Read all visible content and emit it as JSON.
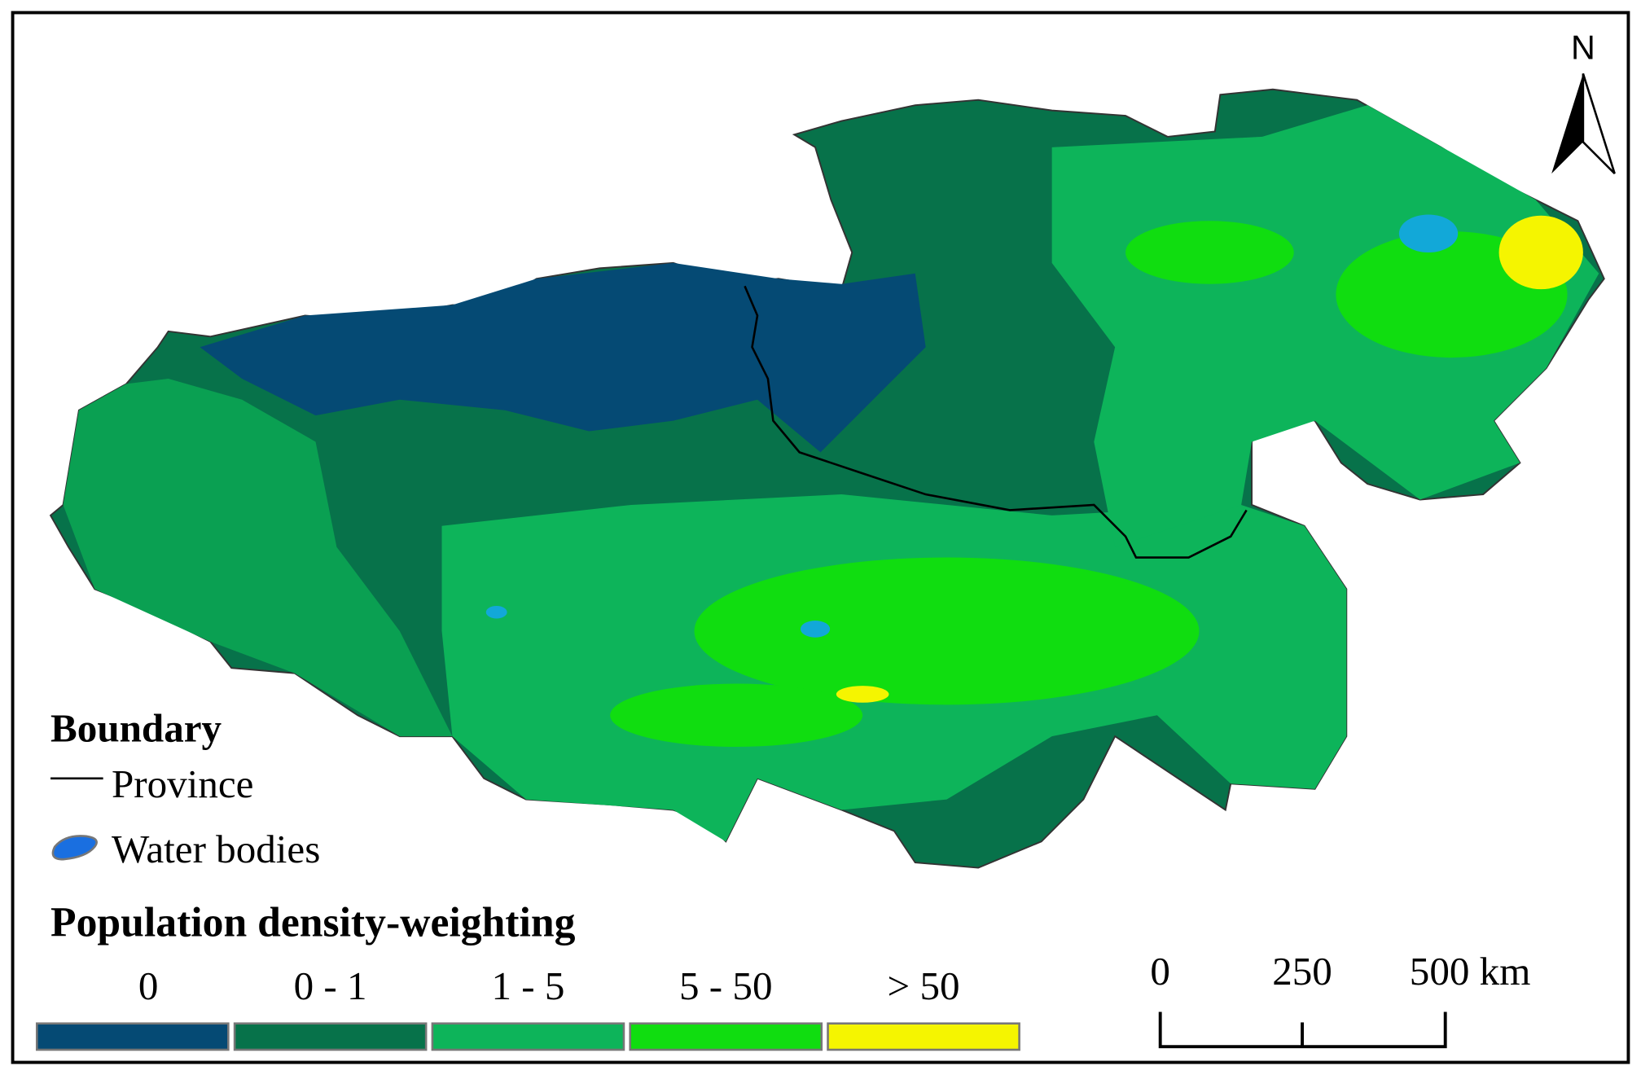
{
  "north": "N",
  "legend": {
    "boundary_title": "Boundary",
    "province": "Province",
    "water": "Water bodies",
    "density_title": "Population density-weighting",
    "classes": [
      {
        "label": "0",
        "color": "#054a74"
      },
      {
        "label": "0 - 1",
        "color": "#07724a"
      },
      {
        "label": "1 - 5",
        "color": "#0db45a"
      },
      {
        "label": "5 - 50",
        "color": "#10dd10"
      },
      {
        "label": "> 50",
        "color": "#f5f500"
      }
    ]
  },
  "scale_bar": {
    "ticks": [
      "0",
      "250",
      "500 km"
    ]
  }
}
